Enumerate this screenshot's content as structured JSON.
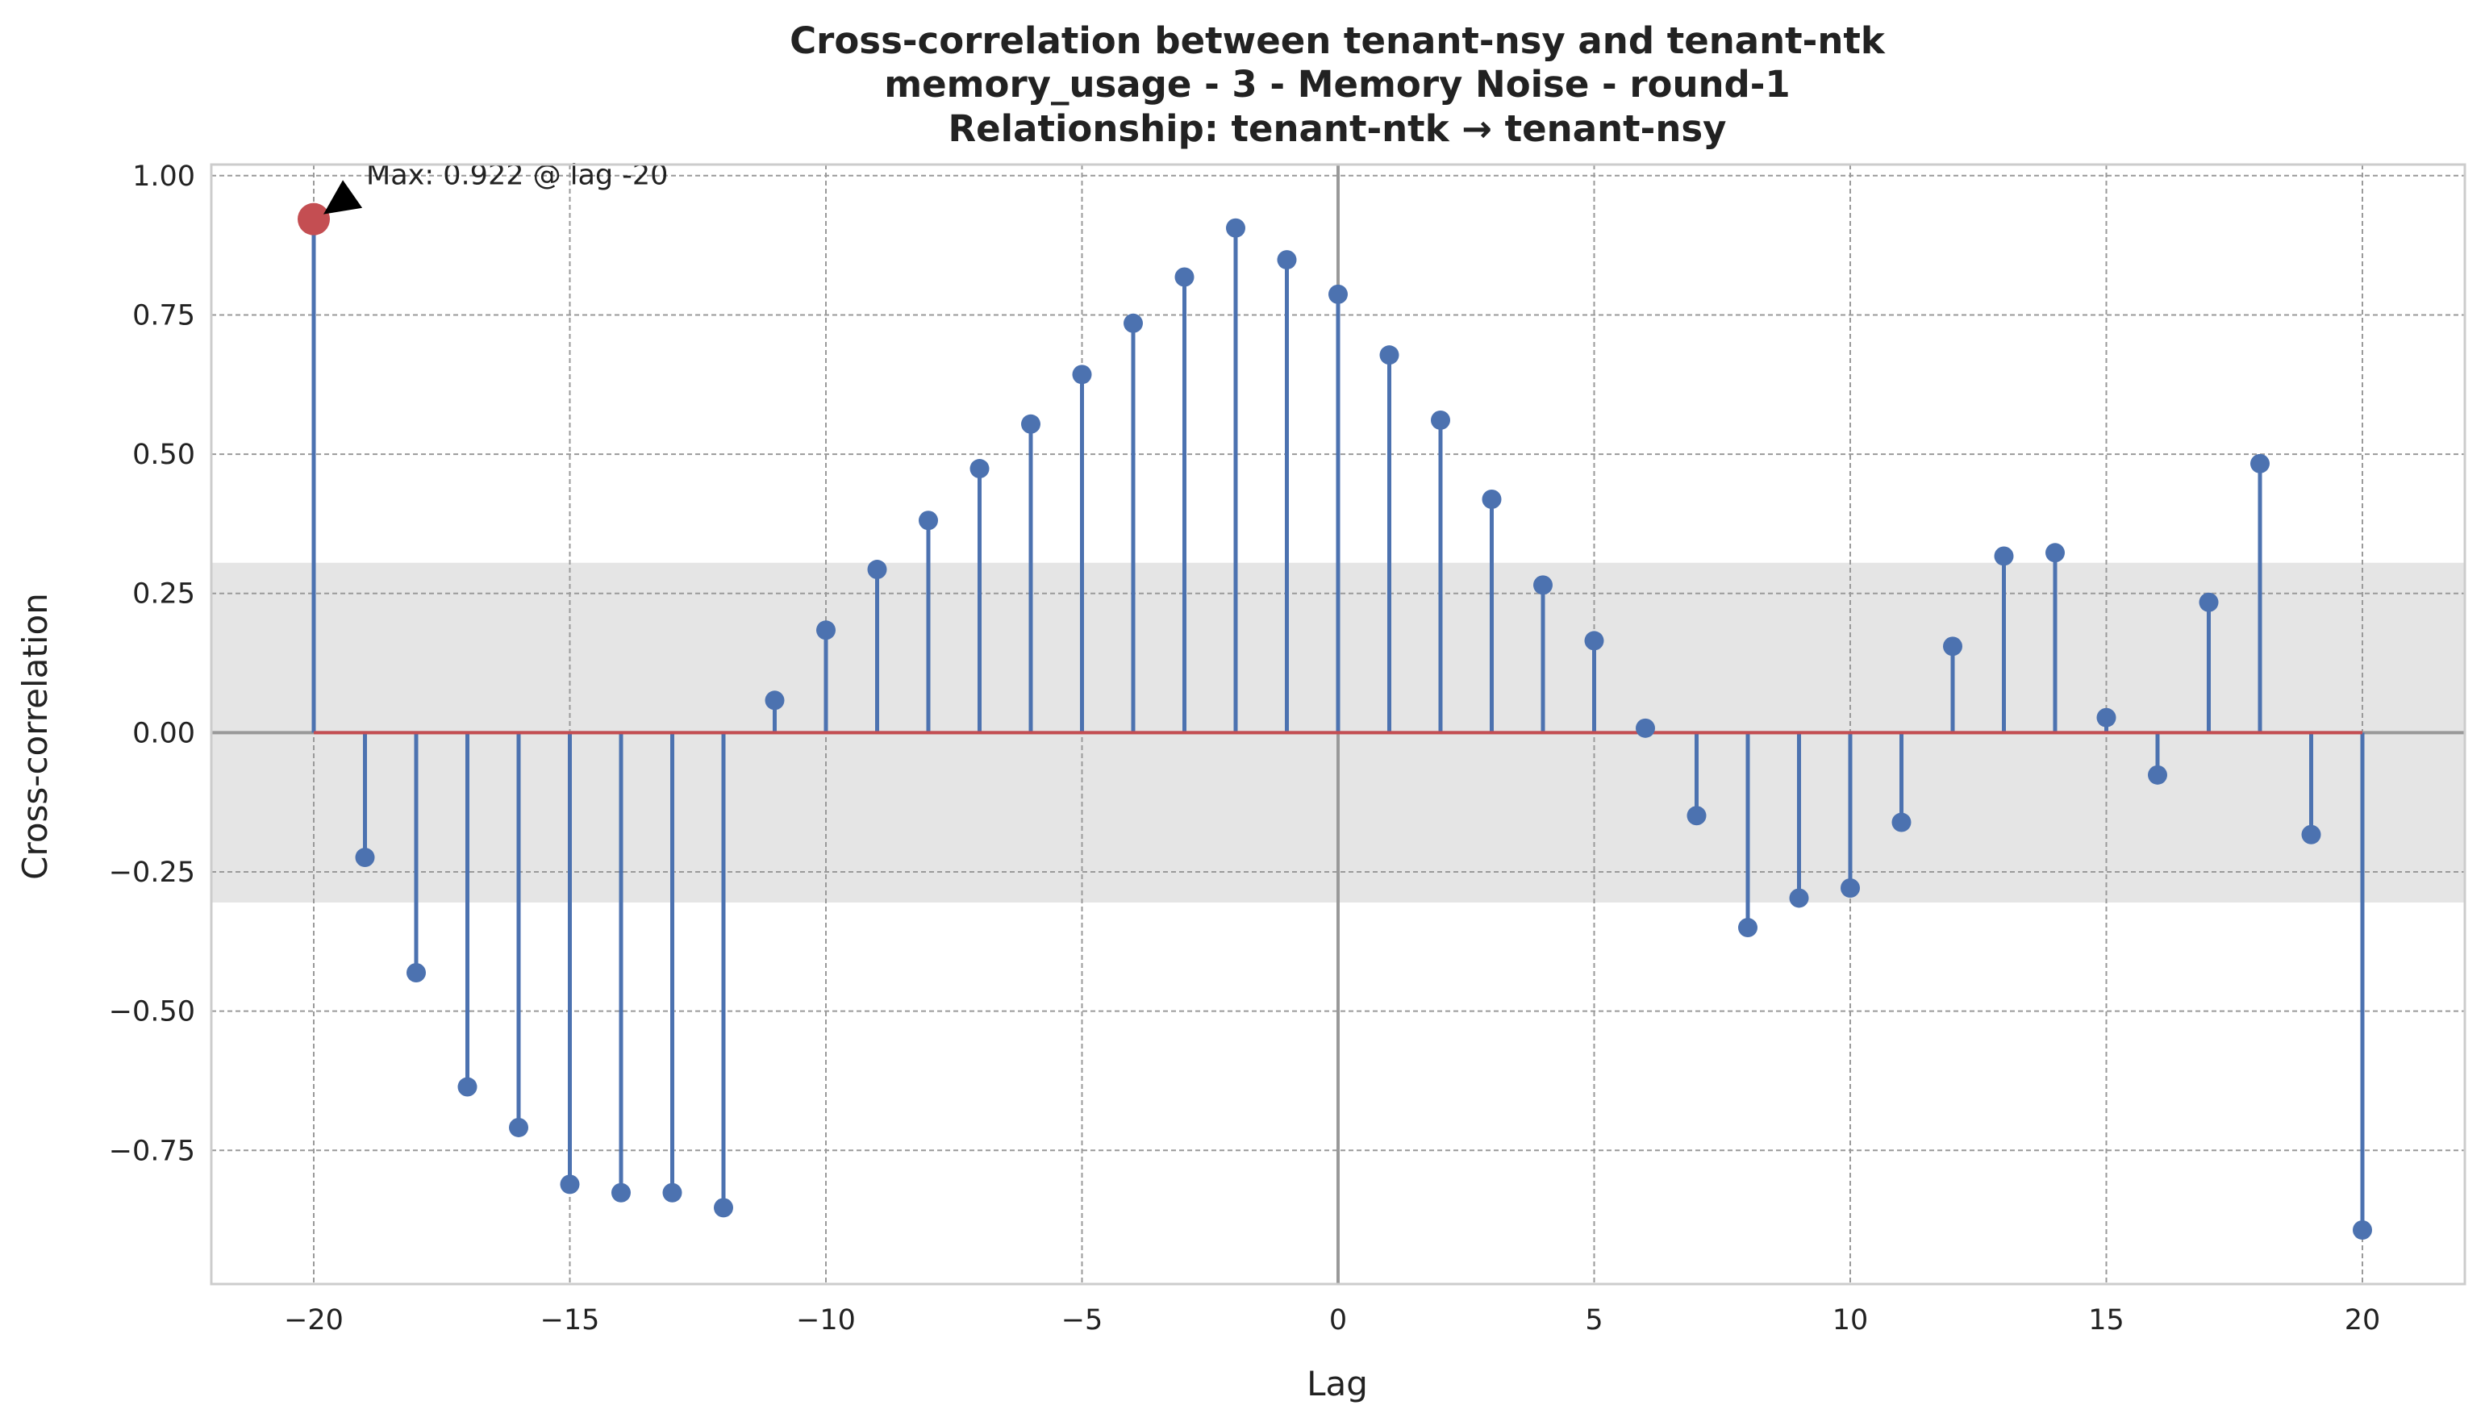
{
  "chart_data": {
    "type": "stem",
    "title_lines": [
      "Cross-correlation between tenant-nsy and tenant-ntk",
      "memory_usage - 3 - Memory Noise - round-1",
      "Relationship: tenant-ntk → tenant-nsy"
    ],
    "xlabel": "Lag",
    "ylabel": "Cross-correlation",
    "xlim": [
      -22,
      22
    ],
    "ylim": [
      -0.99,
      1.02
    ],
    "x_ticks": [
      -20,
      -15,
      -10,
      -5,
      0,
      5,
      10,
      15,
      20
    ],
    "x_tick_labels": [
      "−20",
      "−15",
      "−10",
      "−5",
      "0",
      "5",
      "10",
      "15",
      "20"
    ],
    "y_ticks": [
      1.0,
      0.75,
      0.5,
      0.25,
      0.0,
      -0.25,
      -0.5,
      -0.75
    ],
    "y_tick_labels": [
      "1.00",
      "0.75",
      "0.50",
      "0.25",
      "0.00",
      "−0.25",
      "−0.50",
      "−0.75"
    ],
    "grid": true,
    "confidence_band": [
      -0.305,
      0.305
    ],
    "lags": [
      -20,
      -19,
      -18,
      -17,
      -16,
      -15,
      -14,
      -13,
      -12,
      -11,
      -10,
      -9,
      -8,
      -7,
      -6,
      -5,
      -4,
      -3,
      -2,
      -1,
      0,
      1,
      2,
      3,
      4,
      5,
      6,
      7,
      8,
      9,
      10,
      11,
      12,
      13,
      14,
      15,
      16,
      17,
      18,
      19,
      20
    ],
    "values": [
      0.922,
      -0.224,
      -0.431,
      -0.636,
      -0.709,
      -0.811,
      -0.826,
      -0.826,
      -0.853,
      0.058,
      0.184,
      0.293,
      0.381,
      0.474,
      0.554,
      0.643,
      0.735,
      0.818,
      0.906,
      0.849,
      0.787,
      0.678,
      0.561,
      0.419,
      0.265,
      0.165,
      0.008,
      -0.149,
      -0.35,
      -0.297,
      -0.279,
      -0.161,
      0.155,
      0.317,
      0.323,
      0.027,
      -0.076,
      0.234,
      0.483,
      -0.183,
      -0.893
    ],
    "max_point": {
      "lag": -20,
      "value": 0.922
    },
    "annotation_text": "Max: 0.922 @ lag -20",
    "colors": {
      "stem": "#4c72b0",
      "max_marker": "#c44e52",
      "baseline": "#c44e52",
      "band": "#e5e5e5",
      "zero_line": "#999999",
      "grid": "#9a9a9a",
      "spine": "#cccccc"
    }
  }
}
